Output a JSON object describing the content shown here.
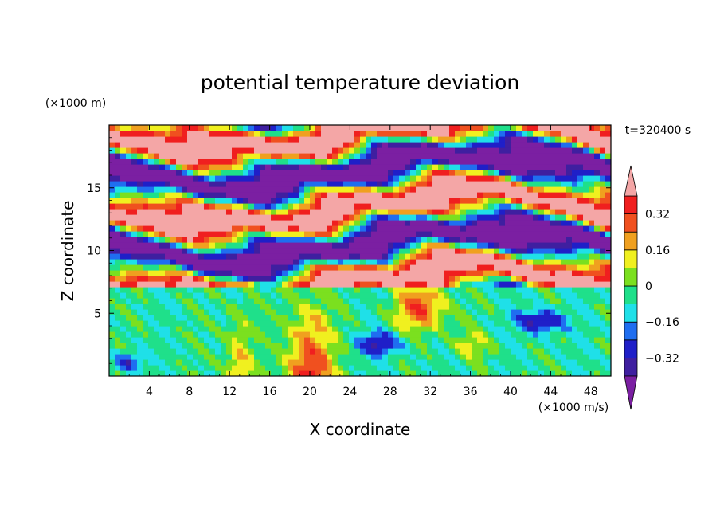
{
  "chart_data": {
    "type": "heatmap",
    "title": "potential temperature deviation",
    "xlabel": "X coordinate",
    "ylabel": "Z coordinate",
    "x_unit": "(×1000 m/s)",
    "y_unit": "(×1000 m)",
    "time_label": "t=320400 s",
    "xlim": [
      0,
      50
    ],
    "ylim": [
      0,
      20
    ],
    "x_ticks": [
      4,
      8,
      12,
      16,
      20,
      24,
      28,
      32,
      36,
      40,
      44,
      48
    ],
    "y_ticks": [
      5,
      10,
      15
    ],
    "x_tick_labels": [
      "4",
      "8",
      "12",
      "16",
      "20",
      "24",
      "28",
      "32",
      "36",
      "40",
      "44",
      "48"
    ],
    "y_tick_labels": [
      "5",
      "10",
      "15"
    ],
    "colorbar": {
      "levels": [
        -0.4,
        -0.32,
        -0.24,
        -0.16,
        -0.08,
        0,
        0.08,
        0.16,
        0.24,
        0.32,
        0.4
      ],
      "colors": [
        "#7b1fa2",
        "#3f1fa0",
        "#1f1fc8",
        "#1f6ef0",
        "#1fe0e8",
        "#1fe08a",
        "#7be01f",
        "#f0f01f",
        "#f0a01f",
        "#f0501f",
        "#f01f1f",
        "#f4a6a6"
      ],
      "under_color": "#7b1fa2",
      "over_color": "#f4a6a6",
      "tick_values": [
        0.32,
        0.16,
        0,
        -0.16,
        -0.32
      ],
      "tick_labels": [
        "0.32",
        "0.16",
        "0",
        "−0.16",
        "−0.32"
      ]
    },
    "grid": false
  }
}
